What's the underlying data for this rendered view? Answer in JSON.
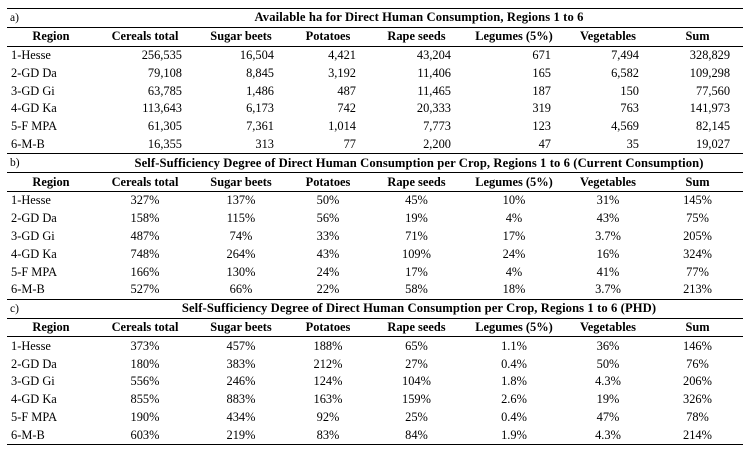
{
  "colors": {
    "text": "#000000",
    "background": "#ffffff",
    "rule": "#000000"
  },
  "table": {
    "columns": [
      "Region",
      "Cereals total",
      "Sugar beets",
      "Potatoes",
      "Rape seeds",
      "Legumes (5%)",
      "Vegetables",
      "Sum"
    ],
    "sections": [
      {
        "label": "a)",
        "title": "Available ha for Direct Human Consumption, Regions 1 to 6",
        "align": "right",
        "rows": [
          [
            "1-Hesse",
            "256,535",
            "16,504",
            "4,421",
            "43,204",
            "671",
            "7,494",
            "328,829"
          ],
          [
            "2-GD Da",
            "79,108",
            "8,845",
            "3,192",
            "11,406",
            "165",
            "6,582",
            "109,298"
          ],
          [
            "3-GD Gi",
            "63,785",
            "1,486",
            "487",
            "11,465",
            "187",
            "150",
            "77,560"
          ],
          [
            "4-GD Ka",
            "113,643",
            "6,173",
            "742",
            "20,333",
            "319",
            "763",
            "141,973"
          ],
          [
            "5-F MPA",
            "61,305",
            "7,361",
            "1,014",
            "7,773",
            "123",
            "4,569",
            "82,145"
          ],
          [
            "6-M-B",
            "16,355",
            "313",
            "77",
            "2,200",
            "47",
            "35",
            "19,027"
          ]
        ]
      },
      {
        "label": "b)",
        "title": "Self-Sufficiency Degree of Direct Human Consumption per Crop, Regions 1 to 6 (Current Consumption)",
        "align": "center",
        "rows": [
          [
            "1-Hesse",
            "327%",
            "137%",
            "50%",
            "45%",
            "10%",
            "31%",
            "145%"
          ],
          [
            "2-GD Da",
            "158%",
            "115%",
            "56%",
            "19%",
            "4%",
            "43%",
            "75%"
          ],
          [
            "3-GD Gi",
            "487%",
            "74%",
            "33%",
            "71%",
            "17%",
            "3.7%",
            "205%"
          ],
          [
            "4-GD Ka",
            "748%",
            "264%",
            "43%",
            "109%",
            "24%",
            "16%",
            "324%"
          ],
          [
            "5-F MPA",
            "166%",
            "130%",
            "24%",
            "17%",
            "4%",
            "41%",
            "77%"
          ],
          [
            "6-M-B",
            "527%",
            "66%",
            "22%",
            "58%",
            "18%",
            "3.7%",
            "213%"
          ]
        ]
      },
      {
        "label": "c)",
        "title": "Self-Sufficiency Degree of Direct Human Consumption per Crop, Regions 1 to 6 (PHD)",
        "align": "center",
        "rows": [
          [
            "1-Hesse",
            "373%",
            "457%",
            "188%",
            "65%",
            "1.1%",
            "36%",
            "146%"
          ],
          [
            "2-GD Da",
            "180%",
            "383%",
            "212%",
            "27%",
            "0.4%",
            "50%",
            "76%"
          ],
          [
            "3-GD Gi",
            "556%",
            "246%",
            "124%",
            "104%",
            "1.8%",
            "4.3%",
            "206%"
          ],
          [
            "4-GD Ka",
            "855%",
            "883%",
            "163%",
            "159%",
            "2.6%",
            "19%",
            "326%"
          ],
          [
            "5-F MPA",
            "190%",
            "434%",
            "92%",
            "25%",
            "0.4%",
            "47%",
            "78%"
          ],
          [
            "6-M-B",
            "603%",
            "219%",
            "83%",
            "84%",
            "1.9%",
            "4.3%",
            "214%"
          ]
        ]
      }
    ]
  }
}
